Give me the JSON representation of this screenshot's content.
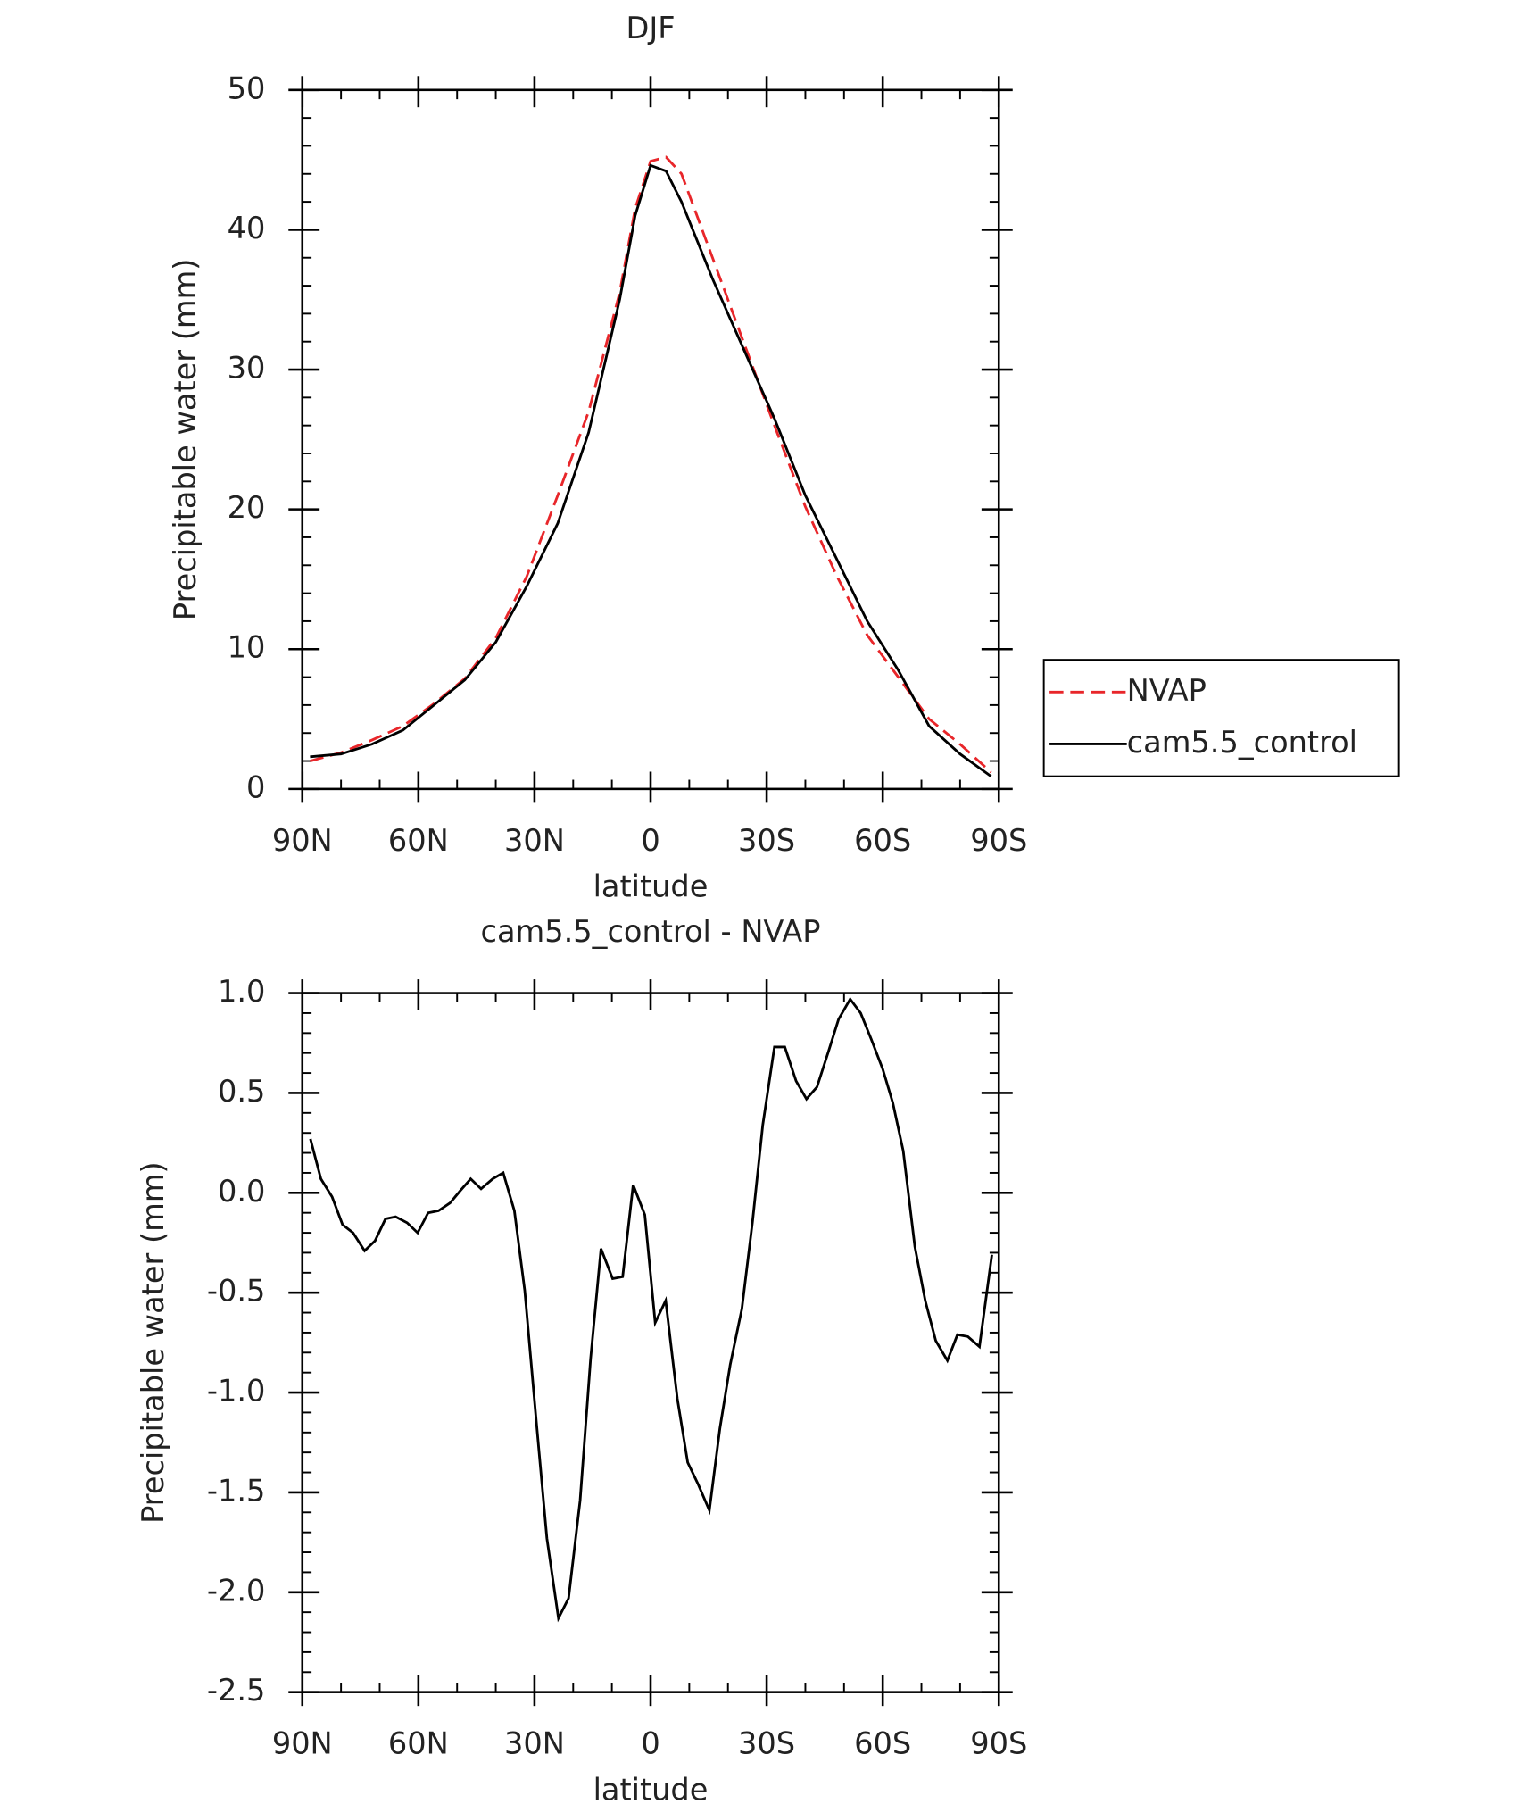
{
  "chart_data": [
    {
      "type": "line",
      "title": "DJF",
      "xlabel": "latitude",
      "ylabel": "Precipitable water (mm)",
      "x": [
        88,
        80,
        72,
        64,
        56,
        48,
        40,
        32,
        24,
        16,
        8,
        4,
        0,
        -4,
        -8,
        -16,
        -24,
        -32,
        -40,
        -48,
        -56,
        -64,
        -72,
        -80,
        -88
      ],
      "series": [
        {
          "name": "NVAP",
          "color": "#e8262a",
          "dash": true,
          "values": [
            2.0,
            2.6,
            3.5,
            4.5,
            6.1,
            7.9,
            10.8,
            15.2,
            21,
            27,
            35.5,
            41.5,
            44.9,
            45.2,
            44,
            38,
            32,
            26,
            20.2,
            15.3,
            11,
            8,
            5,
            3.2,
            1.2
          ]
        },
        {
          "name": "cam5.5_control",
          "color": "#000000",
          "dash": false,
          "values": [
            2.3,
            2.5,
            3.2,
            4.2,
            6.0,
            7.8,
            10.5,
            14.5,
            19.0,
            25.5,
            35,
            41,
            44.6,
            44.2,
            42,
            36.5,
            31.5,
            26.5,
            21,
            16.5,
            12,
            8.5,
            4.5,
            2.5,
            0.9
          ]
        }
      ],
      "xlim": [
        90,
        -90
      ],
      "xticks": [
        {
          "value": 90,
          "label": "90N"
        },
        {
          "value": 60,
          "label": "60N"
        },
        {
          "value": 30,
          "label": "30N"
        },
        0,
        {
          "value": -30,
          "label": "30S"
        },
        {
          "value": -60,
          "label": "60S"
        },
        {
          "value": -90,
          "label": "90S"
        }
      ],
      "ylim": [
        0,
        50
      ],
      "yticks": [
        0,
        10,
        20,
        30,
        40,
        50
      ],
      "legend": "right"
    },
    {
      "type": "line",
      "title": "cam5.5_control - NVAP",
      "xlabel": "latitude",
      "ylabel": "Precipitable water (mm)",
      "x": [
        87.9,
        85.2,
        82.3,
        79.6,
        76.9,
        73.9,
        71.2,
        68.5,
        65.9,
        62.9,
        60.2,
        57.5,
        54.8,
        51.8,
        49.2,
        46.5,
        43.8,
        40.8,
        38.1,
        35.2,
        32.5,
        29.5,
        26.8,
        23.8,
        21.2,
        18.2,
        15.5,
        12.8,
        9.8,
        7.2,
        4.5,
        1.5,
        -1.2,
        -3.9,
        -6.9,
        -9.6,
        -12.3,
        -15.2,
        -17.9,
        -20.6,
        -23.6,
        -26.3,
        -29.0,
        -32.0,
        -34.7,
        -37.6,
        -40.3,
        -43.0,
        -46.0,
        -48.6,
        -51.6,
        -54.3,
        -57.0,
        -60.0,
        -62.6,
        -65.3,
        -68.3,
        -71.0,
        -73.7,
        -76.7,
        -79.3,
        -82.0,
        -85.0,
        -88.2
      ],
      "series": [
        {
          "color": "#000000",
          "dash": false,
          "values": [
            0.27,
            0.07,
            -0.02,
            -0.16,
            -0.2,
            -0.29,
            -0.24,
            -0.13,
            -0.12,
            -0.15,
            -0.2,
            -0.1,
            -0.09,
            -0.05,
            0.01,
            0.07,
            0.02,
            0.07,
            0.1,
            -0.09,
            -0.49,
            -1.15,
            -1.73,
            -2.13,
            -2.03,
            -1.54,
            -0.83,
            -0.28,
            -0.43,
            -0.42,
            0.04,
            -0.11,
            -0.65,
            -0.54,
            -1.03,
            -1.35,
            -1.46,
            -1.59,
            -1.18,
            -0.86,
            -0.58,
            -0.15,
            0.34,
            0.73,
            0.73,
            0.56,
            0.47,
            0.53,
            0.71,
            0.87,
            0.97,
            0.9,
            0.77,
            0.62,
            0.45,
            0.21,
            -0.27,
            -0.54,
            -0.74,
            -0.84,
            -0.71,
            -0.72,
            -0.77,
            -0.31
          ]
        }
      ],
      "xlim": [
        90,
        -90
      ],
      "xticks": [
        {
          "value": 90,
          "label": "90N"
        },
        {
          "value": 60,
          "label": "60N"
        },
        {
          "value": 30,
          "label": "30N"
        },
        0,
        {
          "value": -30,
          "label": "30S"
        },
        {
          "value": -60,
          "label": "60S"
        },
        {
          "value": -90,
          "label": "90S"
        }
      ],
      "ylim": [
        -2.5,
        1.0
      ],
      "yticks": [
        {
          "value": -2.5,
          "label": "-2.5"
        },
        {
          "value": -2,
          "label": "-2.0"
        },
        -1.5,
        {
          "value": -1,
          "label": "-1.0"
        },
        -0.5,
        {
          "value": 0,
          "label": "0.0"
        },
        0.5,
        {
          "value": 1,
          "label": "1.0"
        }
      ]
    }
  ]
}
